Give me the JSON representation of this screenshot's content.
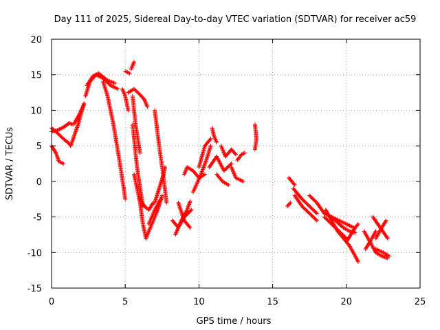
{
  "chart_data": {
    "type": "scatter",
    "title": "Day 111 of 2025, Sidereal Day-to-day VTEC variation (SDTVAR) for receiver ac59",
    "xlabel": "GPS time / hours",
    "ylabel": "SDTVAR / TECUs",
    "xlim": [
      0,
      25
    ],
    "ylim": [
      -15,
      20
    ],
    "xticks": [
      "0",
      "5",
      "10",
      "15",
      "20",
      "25"
    ],
    "yticks": [
      "20",
      "15",
      "10",
      "5",
      "0",
      "-5",
      "-10",
      "-15"
    ],
    "grid": true,
    "marker": "+",
    "color": "#ff0000",
    "tracks": [
      {
        "name": "track-01",
        "points": [
          [
            0.0,
            7.0
          ],
          [
            0.4,
            7.2
          ],
          [
            0.8,
            7.6
          ],
          [
            1.2,
            8.2
          ],
          [
            1.4,
            8.0
          ]
        ]
      },
      {
        "name": "track-02",
        "points": [
          [
            0.0,
            7.5
          ],
          [
            0.4,
            6.8
          ],
          [
            0.8,
            6.0
          ],
          [
            1.2,
            5.3
          ],
          [
            1.3,
            5.0
          ]
        ]
      },
      {
        "name": "track-03",
        "points": [
          [
            0.0,
            5.0
          ],
          [
            0.3,
            4.0
          ],
          [
            0.5,
            2.8
          ],
          [
            0.8,
            2.5
          ]
        ]
      },
      {
        "name": "track-04",
        "points": [
          [
            1.3,
            5.0
          ],
          [
            1.8,
            8.0
          ],
          [
            2.2,
            11.0
          ]
        ]
      },
      {
        "name": "track-05",
        "points": [
          [
            1.5,
            8.0
          ],
          [
            1.9,
            9.5
          ],
          [
            2.2,
            10.8
          ]
        ]
      },
      {
        "name": "track-06",
        "points": [
          [
            2.3,
            12.0
          ],
          [
            2.6,
            14.0
          ],
          [
            3.0,
            15.0
          ],
          [
            3.5,
            14.5
          ],
          [
            4.0,
            13.5
          ],
          [
            4.5,
            13.0
          ]
        ]
      },
      {
        "name": "track-07",
        "points": [
          [
            2.4,
            13.5
          ],
          [
            2.8,
            14.8
          ],
          [
            3.2,
            15.2
          ],
          [
            3.8,
            14.2
          ],
          [
            4.3,
            13.8
          ]
        ]
      },
      {
        "name": "track-08",
        "points": [
          [
            3.5,
            14.0
          ],
          [
            3.8,
            12.0
          ],
          [
            4.2,
            8.0
          ],
          [
            4.6,
            3.0
          ],
          [
            4.9,
            -1.0
          ],
          [
            5.0,
            -2.5
          ]
        ]
      },
      {
        "name": "track-09",
        "points": [
          [
            4.8,
            13.0
          ],
          [
            5.0,
            12.0
          ],
          [
            5.2,
            10.0
          ]
        ]
      },
      {
        "name": "track-10",
        "points": [
          [
            5.0,
            15.5
          ],
          [
            5.3,
            15.2
          ]
        ]
      },
      {
        "name": "track-11",
        "points": [
          [
            5.4,
            15.8
          ],
          [
            5.6,
            16.8
          ]
        ]
      },
      {
        "name": "track-12",
        "points": [
          [
            5.2,
            12.5
          ],
          [
            5.6,
            13.0
          ],
          [
            6.0,
            12.2
          ],
          [
            6.3,
            11.5
          ],
          [
            6.5,
            10.5
          ]
        ]
      },
      {
        "name": "track-13",
        "points": [
          [
            5.5,
            12.0
          ],
          [
            5.7,
            8.0
          ],
          [
            6.0,
            4.0
          ]
        ]
      },
      {
        "name": "track-14",
        "points": [
          [
            5.5,
            8.0
          ],
          [
            5.8,
            2.0
          ],
          [
            6.2,
            -3.5
          ]
        ]
      },
      {
        "name": "track-15",
        "points": [
          [
            5.6,
            1.0
          ],
          [
            6.0,
            -3.0
          ],
          [
            6.2,
            -6.0
          ],
          [
            6.4,
            -8.0
          ]
        ]
      },
      {
        "name": "track-16",
        "points": [
          [
            6.0,
            -2.5
          ],
          [
            6.3,
            -3.5
          ],
          [
            6.6,
            -4.0
          ],
          [
            6.9,
            -3.0
          ]
        ]
      },
      {
        "name": "track-17",
        "points": [
          [
            6.4,
            -8.0
          ],
          [
            6.8,
            -6.0
          ],
          [
            7.2,
            -4.0
          ],
          [
            7.5,
            -2.0
          ]
        ]
      },
      {
        "name": "track-18",
        "points": [
          [
            6.6,
            -6.0
          ],
          [
            7.0,
            -4.0
          ],
          [
            7.4,
            -2.5
          ]
        ]
      },
      {
        "name": "track-19",
        "points": [
          [
            7.0,
            10.0
          ],
          [
            7.3,
            5.0
          ],
          [
            7.6,
            0.5
          ],
          [
            7.8,
            -3.0
          ]
        ]
      },
      {
        "name": "track-20",
        "points": [
          [
            7.0,
            -3.0
          ],
          [
            7.3,
            -1.0
          ],
          [
            7.6,
            1.0
          ],
          [
            7.7,
            2.0
          ]
        ]
      },
      {
        "name": "track-21",
        "points": [
          [
            8.2,
            -5.5
          ],
          [
            8.6,
            -6.5
          ],
          [
            9.0,
            -5.0
          ],
          [
            9.5,
            -4.0
          ]
        ]
      },
      {
        "name": "track-22",
        "points": [
          [
            8.4,
            -7.5
          ],
          [
            8.8,
            -5.5
          ],
          [
            9.2,
            -4.0
          ],
          [
            9.4,
            -2.8
          ]
        ]
      },
      {
        "name": "track-23",
        "points": [
          [
            8.6,
            -3.0
          ],
          [
            9.0,
            -5.5
          ],
          [
            9.4,
            -6.5
          ]
        ]
      },
      {
        "name": "track-24",
        "points": [
          [
            9.0,
            1.0
          ],
          [
            9.2,
            2.0
          ],
          [
            9.6,
            1.5
          ],
          [
            10.0,
            0.5
          ],
          [
            10.4,
            1.0
          ]
        ]
      },
      {
        "name": "track-25",
        "points": [
          [
            9.6,
            -1.5
          ],
          [
            10.1,
            0.8
          ],
          [
            10.5,
            3.0
          ],
          [
            10.8,
            5.0
          ]
        ]
      },
      {
        "name": "track-26",
        "points": [
          [
            10.0,
            2.0
          ],
          [
            10.4,
            5.0
          ],
          [
            10.8,
            6.0
          ]
        ]
      },
      {
        "name": "track-27",
        "points": [
          [
            10.9,
            7.5
          ],
          [
            11.0,
            6.5
          ],
          [
            11.2,
            5.5
          ]
        ]
      },
      {
        "name": "track-28",
        "points": [
          [
            10.7,
            2.0
          ],
          [
            11.2,
            3.5
          ],
          [
            11.7,
            1.5
          ],
          [
            12.2,
            2.5
          ]
        ]
      },
      {
        "name": "track-29",
        "points": [
          [
            11.2,
            1.0
          ],
          [
            11.6,
            0.0
          ],
          [
            12.0,
            -0.5
          ]
        ]
      },
      {
        "name": "track-30",
        "points": [
          [
            11.5,
            5.0
          ],
          [
            11.8,
            3.5
          ],
          [
            12.2,
            4.5
          ],
          [
            12.5,
            3.8
          ]
        ]
      },
      {
        "name": "track-31",
        "points": [
          [
            12.2,
            2.0
          ],
          [
            12.5,
            0.5
          ],
          [
            12.8,
            0.2
          ],
          [
            13.0,
            0.0
          ]
        ]
      },
      {
        "name": "track-32",
        "points": [
          [
            12.6,
            3.0
          ],
          [
            12.9,
            3.8
          ],
          [
            13.1,
            4.0
          ]
        ]
      },
      {
        "name": "track-33",
        "points": [
          [
            13.8,
            8.0
          ],
          [
            13.9,
            6.0
          ],
          [
            13.8,
            4.5
          ]
        ]
      },
      {
        "name": "track-34",
        "points": [
          [
            16.0,
            -3.5
          ],
          [
            16.2,
            -3.0
          ]
        ]
      },
      {
        "name": "track-35",
        "points": [
          [
            16.1,
            0.5
          ],
          [
            16.5,
            -0.5
          ]
        ]
      },
      {
        "name": "track-36",
        "points": [
          [
            16.4,
            -1.0
          ],
          [
            17.0,
            -2.5
          ],
          [
            17.5,
            -3.5
          ],
          [
            18.0,
            -4.5
          ]
        ]
      },
      {
        "name": "track-37",
        "points": [
          [
            16.5,
            -2.0
          ],
          [
            17.0,
            -3.5
          ],
          [
            17.5,
            -4.5
          ],
          [
            18.0,
            -5.5
          ]
        ]
      },
      {
        "name": "track-38",
        "points": [
          [
            17.5,
            -2.0
          ],
          [
            18.0,
            -3.0
          ],
          [
            18.5,
            -4.5
          ],
          [
            19.0,
            -5.0
          ],
          [
            19.5,
            -5.5
          ],
          [
            20.0,
            -6.0
          ],
          [
            20.5,
            -6.5
          ]
        ]
      },
      {
        "name": "track-39",
        "points": [
          [
            18.6,
            -4.0
          ],
          [
            19.0,
            -5.5
          ],
          [
            19.4,
            -7.0
          ],
          [
            19.8,
            -8.0
          ],
          [
            20.2,
            -9.0
          ],
          [
            20.6,
            -10.5
          ],
          [
            20.8,
            -11.3
          ]
        ]
      },
      {
        "name": "track-40",
        "points": [
          [
            18.5,
            -5.0
          ],
          [
            19.0,
            -6.0
          ],
          [
            19.5,
            -7.0
          ],
          [
            20.0,
            -8.0
          ]
        ]
      },
      {
        "name": "track-41",
        "points": [
          [
            19.0,
            -5.0
          ],
          [
            19.4,
            -5.8
          ],
          [
            19.8,
            -6.5
          ],
          [
            20.2,
            -7.0
          ],
          [
            20.6,
            -7.2
          ]
        ]
      },
      {
        "name": "track-42",
        "points": [
          [
            20.0,
            -8.5
          ],
          [
            20.3,
            -7.5
          ],
          [
            20.6,
            -6.5
          ],
          [
            20.8,
            -6.0
          ]
        ]
      },
      {
        "name": "track-43",
        "points": [
          [
            21.2,
            -7.0
          ],
          [
            21.6,
            -8.5
          ],
          [
            22.0,
            -10.0
          ]
        ]
      },
      {
        "name": "track-44",
        "points": [
          [
            21.3,
            -9.5
          ],
          [
            21.6,
            -8.5
          ],
          [
            22.0,
            -7.0
          ]
        ]
      },
      {
        "name": "track-45",
        "points": [
          [
            21.8,
            -5.0
          ],
          [
            22.3,
            -6.5
          ],
          [
            22.8,
            -8.0
          ]
        ]
      },
      {
        "name": "track-46",
        "points": [
          [
            22.0,
            -8.0
          ],
          [
            22.4,
            -6.5
          ],
          [
            22.7,
            -5.5
          ]
        ]
      },
      {
        "name": "track-47",
        "points": [
          [
            22.0,
            -9.5
          ],
          [
            22.5,
            -10.0
          ],
          [
            22.9,
            -10.5
          ]
        ]
      },
      {
        "name": "track-48",
        "points": [
          [
            22.0,
            -10.0
          ],
          [
            22.4,
            -10.5
          ],
          [
            22.8,
            -10.8
          ]
        ]
      }
    ]
  }
}
